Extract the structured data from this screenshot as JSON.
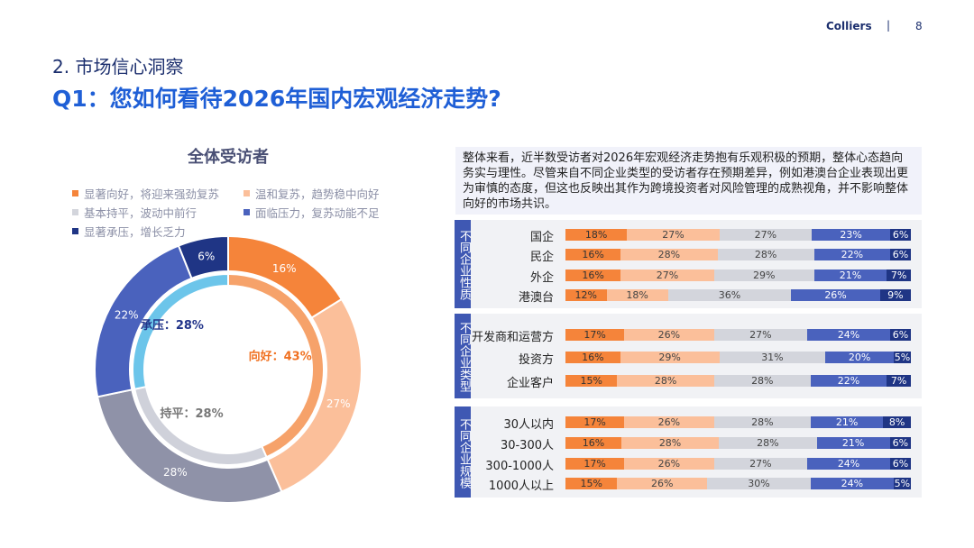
{
  "header": {
    "brand": "Colliers",
    "separator": "|",
    "page": "8"
  },
  "section": "2. 市场信心洞察",
  "title": "Q1：您如何看待2026年国内宏观经济走势?",
  "colors": {
    "strong_up": "#f5843a",
    "mild_up": "#fbbf9a",
    "flat": "#d3d5dc",
    "pressure": "#4a62bd",
    "strong_pressure": "#1f3585",
    "inner_up": "#f6a26a",
    "inner_flat": "#cfd1da",
    "inner_pressure": "#6cc5ea",
    "outer_flat": "#8f92a8"
  },
  "chart_data": [
    {
      "type": "pie",
      "title": "全体受访者",
      "legend": [
        "显著向好，将迎来强劲复苏",
        "温和复苏，趋势稳中向好",
        "基本持平，波动中前行",
        "面临压力，复苏动能不足",
        "显著承压，增长乏力"
      ],
      "outer": {
        "values": [
          16,
          27,
          28,
          22,
          6
        ],
        "labels": [
          "16%",
          "27%",
          "28%",
          "22%",
          "6%"
        ]
      },
      "inner": {
        "categories": [
          "向好",
          "持平",
          "承压"
        ],
        "values": [
          43,
          28,
          28
        ],
        "labels": [
          "向好：43%",
          "持平：28%",
          "承压：28%"
        ]
      }
    },
    {
      "type": "bar",
      "stacked": true,
      "summary": "整体来看，近半数受访者对2026年宏观经济走势抱有乐观积极的预期，整体心态趋向务实与理性。尽管来自不同企业类型的受访者存在预期差异，例如港澳台企业表现出更为审慎的态度，但这也反映出其作为跨境投资者对风险管理的成熟视角，并不影响整体向好的市场共识。",
      "groups": [
        {
          "name": "不同企业性质",
          "rows": [
            {
              "label": "国企",
              "values": [
                18,
                27,
                27,
                23,
                6
              ]
            },
            {
              "label": "民企",
              "values": [
                16,
                28,
                28,
                22,
                6
              ]
            },
            {
              "label": "外企",
              "values": [
                16,
                27,
                29,
                21,
                7
              ]
            },
            {
              "label": "港澳台",
              "values": [
                12,
                18,
                36,
                26,
                9
              ]
            }
          ]
        },
        {
          "name": "不同企业类型",
          "rows": [
            {
              "label": "开发商和运营方",
              "values": [
                17,
                26,
                27,
                24,
                6
              ]
            },
            {
              "label": "投资方",
              "values": [
                16,
                29,
                31,
                20,
                5
              ]
            },
            {
              "label": "企业客户",
              "values": [
                15,
                28,
                28,
                22,
                7
              ]
            }
          ]
        },
        {
          "name": "不同企业规模",
          "rows": [
            {
              "label": "30人以内",
              "values": [
                17,
                26,
                28,
                21,
                8
              ]
            },
            {
              "label": "30-300人",
              "values": [
                16,
                28,
                28,
                21,
                6
              ]
            },
            {
              "label": "300-1000人",
              "values": [
                17,
                26,
                27,
                24,
                6
              ]
            },
            {
              "label": "1000人以上",
              "values": [
                15,
                26,
                30,
                24,
                5
              ]
            }
          ]
        }
      ]
    }
  ]
}
